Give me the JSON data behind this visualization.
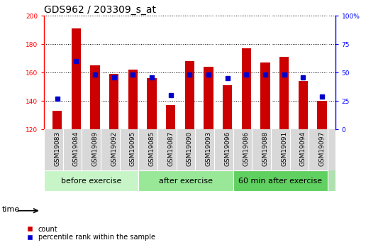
{
  "title": "GDS962 / 203309_s_at",
  "samples": [
    "GSM19083",
    "GSM19084",
    "GSM19089",
    "GSM19092",
    "GSM19095",
    "GSM19085",
    "GSM19087",
    "GSM19090",
    "GSM19093",
    "GSM19096",
    "GSM19086",
    "GSM19088",
    "GSM19091",
    "GSM19094",
    "GSM19097"
  ],
  "counts": [
    133,
    191,
    165,
    159,
    162,
    156,
    137,
    168,
    164,
    151,
    177,
    167,
    171,
    154,
    140
  ],
  "percentile_ranks": [
    27,
    60,
    48,
    46,
    48,
    46,
    30,
    48,
    48,
    45,
    48,
    48,
    48,
    46,
    29
  ],
  "groups": [
    {
      "label": "before exercise",
      "start": 0,
      "end": 5,
      "color": "#c8f5c8"
    },
    {
      "label": "after exercise",
      "start": 5,
      "end": 10,
      "color": "#98e898"
    },
    {
      "label": "60 min after exercise",
      "start": 10,
      "end": 15,
      "color": "#60d060"
    }
  ],
  "ylim": [
    120,
    200
  ],
  "y_ticks": [
    120,
    140,
    160,
    180,
    200
  ],
  "y2_ticks": [
    0,
    25,
    50,
    75,
    100
  ],
  "bar_color": "#cc0000",
  "percentile_color": "#0000cc",
  "bar_width": 0.5,
  "background_color": "#ffffff",
  "plot_bg_color": "#ffffff",
  "ticklabel_bg_color": "#d8d8d8",
  "title_fontsize": 10,
  "tick_fontsize": 6.5,
  "label_fontsize": 8,
  "group_label_fontsize": 8
}
